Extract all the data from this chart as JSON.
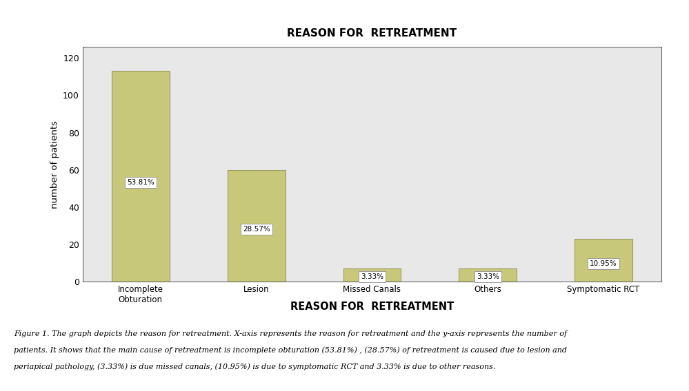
{
  "title": "REASON FOR  RETREATMENT",
  "xlabel": "REASON FOR  RETREATMENT",
  "ylabel": "number of patients",
  "categories": [
    "Incomplete\nObturation",
    "Lesion",
    "Missed Canals",
    "Others",
    "Symptomatic RCT"
  ],
  "values": [
    113,
    60,
    7,
    7,
    23
  ],
  "labels": [
    "53.81%",
    "28.57%",
    "3.33%",
    "3.33%",
    "10.95%"
  ],
  "bar_color": "#c8c87a",
  "bar_edgecolor": "#9a9a60",
  "ylim": [
    0,
    126
  ],
  "yticks": [
    0,
    20,
    40,
    60,
    80,
    100,
    120
  ],
  "plot_bg_color": "#e8e8e8",
  "fig_bg_color": "#ffffff",
  "caption_bold": "Figure 1.",
  "caption_rest": " The graph depicts the reason for retreatment. X-axis represents the reason for retreatment and the y-axis represents the number of patients. It shows that the main cause of retreatment is incomplete obturation (53.81%) , (28.57%) of retreatment is caused due to lesion and periapical pathology, (3.33%) is due missed canals, (10.95%) is due to symptomatic RCT and 3.33% is due to other reasons."
}
